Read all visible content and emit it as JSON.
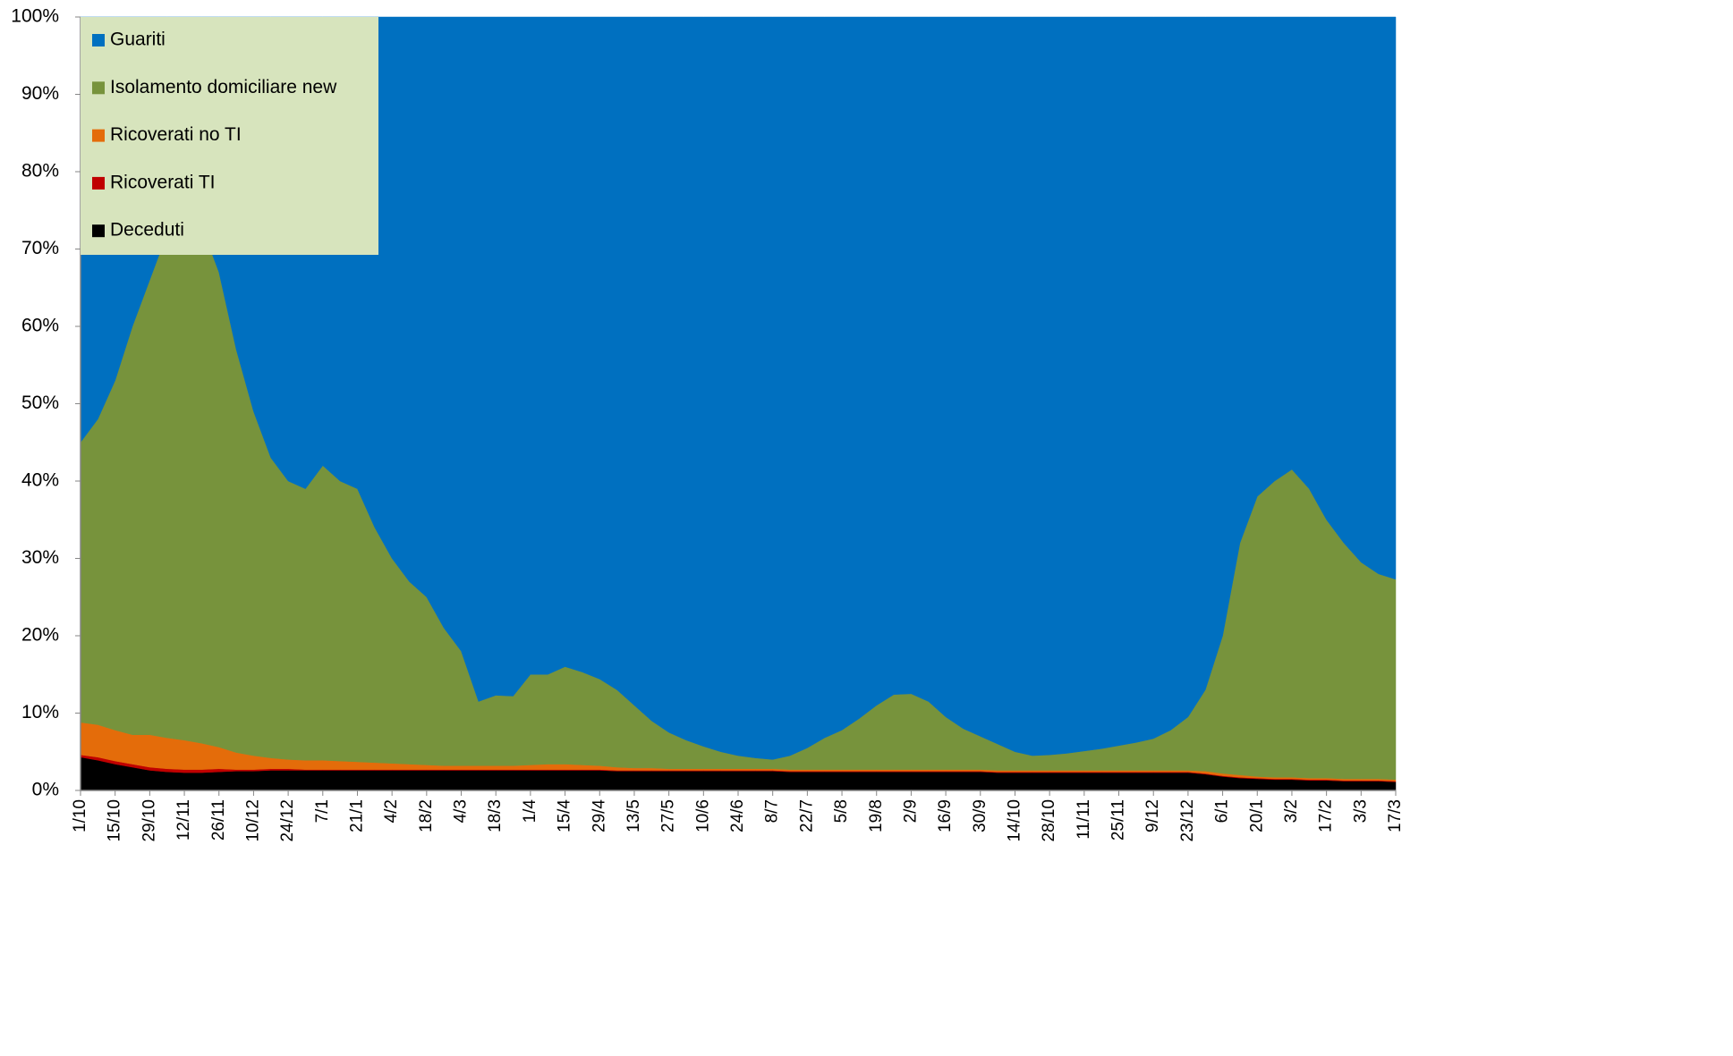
{
  "chart_data": {
    "type": "stacked_area",
    "categories": [
      "1/10",
      null,
      "15/10",
      null,
      "29/10",
      null,
      "12/11",
      null,
      "26/11",
      null,
      "10/12",
      null,
      "24/12",
      null,
      "7/1",
      null,
      "21/1",
      null,
      "4/2",
      null,
      "18/2",
      null,
      "4/3",
      null,
      "18/3",
      null,
      "1/4",
      null,
      "15/4",
      null,
      "29/4",
      null,
      "13/5",
      null,
      "27/5",
      null,
      "10/6",
      null,
      "24/6",
      null,
      "8/7",
      null,
      "22/7",
      null,
      "5/8",
      null,
      "19/8",
      null,
      "2/9",
      null,
      "16/9",
      null,
      "30/9",
      null,
      "14/10",
      null,
      "28/10",
      null,
      "11/11",
      null,
      "25/11",
      null,
      "9/12",
      null,
      "23/12",
      null,
      "6/1",
      null,
      "20/1",
      null,
      "3/2",
      null,
      "17/2",
      null,
      "3/3",
      null,
      "17/3"
    ],
    "series": [
      {
        "name": "Guariti",
        "color": "#0070c0",
        "values": [
          55,
          52,
          47,
          40,
          34,
          28,
          26,
          27,
          33,
          43,
          51,
          57,
          60,
          61,
          58,
          60,
          61,
          66,
          70,
          73,
          75,
          79,
          82,
          88.5,
          87.7,
          87.8,
          85,
          85,
          84,
          84.7,
          85.6,
          87,
          89,
          91,
          92.5,
          93.5,
          94.3,
          95,
          95.5,
          95.8,
          96,
          95.5,
          94.5,
          93.2,
          92.2,
          90.7,
          89,
          87.6,
          87.5,
          88.5,
          90.5,
          92,
          93,
          94,
          95,
          95.5,
          95.4,
          95.2,
          94.9,
          94.6,
          94.2,
          93.8,
          93.3,
          92.2,
          90.5,
          87,
          80,
          68,
          62,
          60,
          58.5,
          61,
          65,
          68,
          70.5,
          72,
          72.7
        ]
      },
      {
        "name": "Isolamento domiciliare new",
        "color": "#77933c",
        "values": [
          36.2,
          39.5,
          45.2,
          52.8,
          58.8,
          65.2,
          67.5,
          66.9,
          61.4,
          52.1,
          44.5,
          38.8,
          36,
          35.1,
          38.1,
          36.2,
          35.3,
          30.4,
          26.5,
          23.6,
          21.7,
          17.8,
          14.8,
          8.3,
          9.1,
          9,
          11.7,
          11.6,
          12.6,
          12,
          11.2,
          10,
          8.1,
          6.1,
          4.7,
          3.7,
          2.9,
          2.2,
          1.7,
          1.4,
          1.2,
          1.8,
          2.8,
          4.1,
          5.1,
          6.6,
          8.3,
          9.7,
          9.8,
          8.8,
          6.8,
          5.3,
          4.3,
          3.4,
          2.4,
          1.9,
          2,
          2.2,
          2.5,
          2.8,
          3.2,
          3.6,
          4.1,
          5.2,
          6.9,
          10.5,
          17.8,
          30,
          36.2,
          38.3,
          39.8,
          37.4,
          33.4,
          30.5,
          28,
          26.5,
          25.9
        ]
      },
      {
        "name": "Ricoverati no TI",
        "color": "#e46c0a",
        "values": [
          4.2,
          4.2,
          4,
          3.8,
          4.2,
          4,
          3.8,
          3.4,
          2.8,
          2.2,
          1.8,
          1.4,
          1.2,
          1.2,
          1.2,
          1.1,
          1,
          0.9,
          0.8,
          0.7,
          0.6,
          0.5,
          0.5,
          0.5,
          0.5,
          0.5,
          0.6,
          0.7,
          0.7,
          0.6,
          0.5,
          0.4,
          0.3,
          0.3,
          0.2,
          0.2,
          0.2,
          0.2,
          0.2,
          0.2,
          0.2,
          0.2,
          0.2,
          0.2,
          0.2,
          0.2,
          0.2,
          0.2,
          0.2,
          0.2,
          0.2,
          0.2,
          0.2,
          0.2,
          0.2,
          0.2,
          0.2,
          0.2,
          0.2,
          0.2,
          0.2,
          0.2,
          0.2,
          0.2,
          0.2,
          0.3,
          0.3,
          0.3,
          0.2,
          0.2,
          0.2,
          0.2,
          0.2,
          0.2,
          0.2,
          0.2,
          0.2
        ]
      },
      {
        "name": "Ricoverati TI",
        "color": "#c00000",
        "values": [
          0.3,
          0.4,
          0.4,
          0.4,
          0.4,
          0.4,
          0.4,
          0.4,
          0.4,
          0.2,
          0.2,
          0.2,
          0.2,
          0.1,
          0.1,
          0.1,
          0.1,
          0.1,
          0.1,
          0.1,
          0.1,
          0.1,
          0.1,
          0.1,
          0.1,
          0.1,
          0.1,
          0.1,
          0.1,
          0.1,
          0.1,
          0.1,
          0.1,
          0.1,
          0.1,
          0.1,
          0.1,
          0.1,
          0.1,
          0.1,
          0.1,
          0.1,
          0.1,
          0.1,
          0.1,
          0.1,
          0.1,
          0.1,
          0.1,
          0.1,
          0.1,
          0.1,
          0.1,
          0.1,
          0.1,
          0.1,
          0.1,
          0.1,
          0.1,
          0.1,
          0.1,
          0.1,
          0.1,
          0.1,
          0.1,
          0.1,
          0.1,
          0.1,
          0.1,
          0.1,
          0.1,
          0.1,
          0.1,
          0.1,
          0.1,
          0.1,
          0.1
        ]
      },
      {
        "name": "Deceduti",
        "color": "#000000",
        "values": [
          4.3,
          3.9,
          3.4,
          3,
          2.6,
          2.4,
          2.3,
          2.3,
          2.4,
          2.5,
          2.5,
          2.6,
          2.6,
          2.6,
          2.6,
          2.6,
          2.6,
          2.6,
          2.6,
          2.6,
          2.6,
          2.6,
          2.6,
          2.6,
          2.6,
          2.6,
          2.6,
          2.6,
          2.6,
          2.6,
          2.6,
          2.5,
          2.5,
          2.5,
          2.5,
          2.5,
          2.5,
          2.5,
          2.5,
          2.5,
          2.5,
          2.4,
          2.4,
          2.4,
          2.4,
          2.4,
          2.4,
          2.4,
          2.4,
          2.4,
          2.4,
          2.4,
          2.4,
          2.3,
          2.3,
          2.3,
          2.3,
          2.3,
          2.3,
          2.3,
          2.3,
          2.3,
          2.3,
          2.3,
          2.3,
          2.1,
          1.8,
          1.6,
          1.5,
          1.4,
          1.4,
          1.3,
          1.3,
          1.2,
          1.2,
          1.2,
          1.1
        ]
      }
    ],
    "ylim": [
      0,
      100
    ],
    "yticks": [
      {
        "value": 0,
        "label": "0%"
      },
      {
        "value": 10,
        "label": "10%"
      },
      {
        "value": 20,
        "label": "20%"
      },
      {
        "value": 30,
        "label": "30%"
      },
      {
        "value": 40,
        "label": "40%"
      },
      {
        "value": 50,
        "label": "50%"
      },
      {
        "value": 60,
        "label": "60%"
      },
      {
        "value": 70,
        "label": "70%"
      },
      {
        "value": 80,
        "label": "80%"
      },
      {
        "value": 90,
        "label": "90%"
      },
      {
        "value": 100,
        "label": "100%"
      }
    ],
    "legend": "top-left",
    "legend_background": "#d7e4bd"
  }
}
